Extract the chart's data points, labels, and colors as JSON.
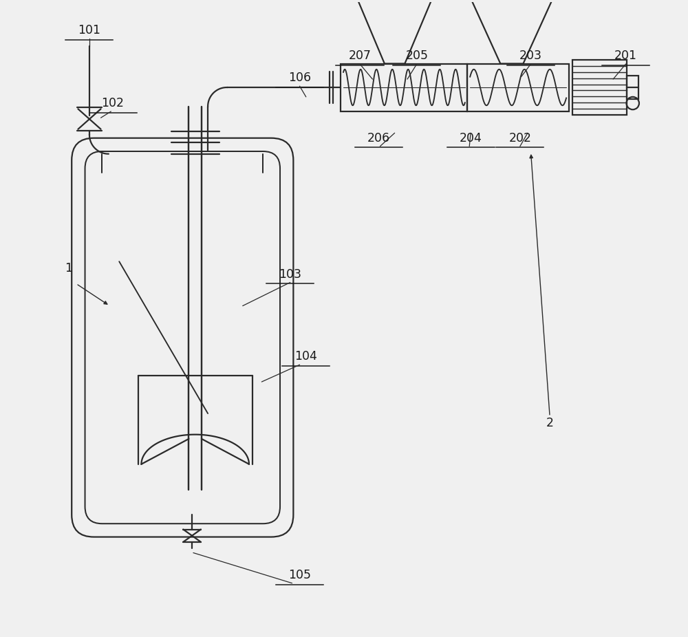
{
  "bg_color": "#f0f0f0",
  "line_color": "#2a2a2a",
  "label_color": "#1a1a1a",
  "fig_width": 10.0,
  "fig_height": 9.26
}
